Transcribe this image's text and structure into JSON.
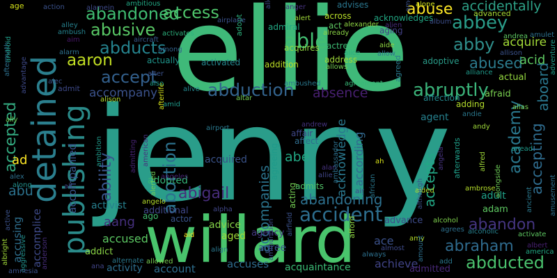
{
  "words": [
    {
      "text": "jenny",
      "color": "#2a9d8a"
    },
    {
      "text": "ellie",
      "color": "#3fb979"
    },
    {
      "text": "willard",
      "color": "#49c46c"
    },
    {
      "text": "detained",
      "color": "#2b7f8e"
    },
    {
      "text": "publishing",
      "color": "#2a8a89"
    },
    {
      "text": "abducted",
      "color": "#4ac16d"
    },
    {
      "text": "accident",
      "color": "#2d6e8e"
    },
    {
      "text": "abruptly",
      "color": "#3bb47a"
    },
    {
      "text": "abduction",
      "color": "#33638d"
    },
    {
      "text": "abandoned",
      "color": "#40bd72"
    },
    {
      "text": "access",
      "color": "#4fc56b"
    },
    {
      "text": "abusive",
      "color": "#58c765"
    },
    {
      "text": "abuse",
      "color": "#fde725"
    },
    {
      "text": "accidentally",
      "color": "#2ea288"
    },
    {
      "text": "abbey",
      "color": "#2a9d8a"
    },
    {
      "text": "abby",
      "color": "#2f8f8c"
    },
    {
      "text": "able",
      "color": "#42be71"
    },
    {
      "text": "abducts",
      "color": "#25838e"
    },
    {
      "text": "abused",
      "color": "#2c7c8e"
    },
    {
      "text": "aaron",
      "color": "#c2df23"
    },
    {
      "text": "accept",
      "color": "#33608d"
    },
    {
      "text": "abortion",
      "color": "#2c728e"
    },
    {
      "text": "ability",
      "color": "#39568c"
    },
    {
      "text": "academy",
      "color": "#2a788e"
    },
    {
      "text": "accepting",
      "color": "#2f6c8e"
    },
    {
      "text": "accepted",
      "color": "#33aa80"
    },
    {
      "text": "abigail",
      "color": "#472d7b"
    },
    {
      "text": "abandoning",
      "color": "#2d708e"
    },
    {
      "text": "abandon",
      "color": "#453581"
    },
    {
      "text": "abraham",
      "color": "#2f6b8e"
    },
    {
      "text": "accepts",
      "color": "#22a785"
    },
    {
      "text": "accompanies",
      "color": "#2b748e"
    },
    {
      "text": "aang",
      "color": "#46307e"
    },
    {
      "text": "absence",
      "color": "#482071"
    },
    {
      "text": "abe",
      "color": "#22a884"
    },
    {
      "text": "acknowledge",
      "color": "#2a788e"
    },
    {
      "text": "according",
      "color": "#31688e"
    },
    {
      "text": "aboard",
      "color": "#2a778e"
    },
    {
      "text": "acid",
      "color": "#5ec962"
    },
    {
      "text": "acquire",
      "color": "#a2da37"
    },
    {
      "text": "abu",
      "color": "#2c728e"
    },
    {
      "text": "accompany",
      "color": "#3b528b"
    },
    {
      "text": "accusing",
      "color": "#2e6f8e"
    },
    {
      "text": "accused",
      "color": "#5cc863"
    },
    {
      "text": "account",
      "color": "#2e6e8e"
    },
    {
      "text": "accuses",
      "color": "#2f6b8e"
    },
    {
      "text": "acquaintance",
      "color": "#3bbb75"
    },
    {
      "text": "achieve",
      "color": "#414487"
    },
    {
      "text": "accompanied",
      "color": "#39558c"
    },
    {
      "text": "accomplice",
      "color": "#3e4a89"
    },
    {
      "text": "acquired",
      "color": "#3a538b"
    },
    {
      "text": "adopted",
      "color": "#35b779"
    },
    {
      "text": "activist",
      "color": "#27808e"
    },
    {
      "text": "activity",
      "color": "#2e6e8e"
    },
    {
      "text": "additional",
      "color": "#3f4889"
    },
    {
      "text": "actor",
      "color": "#3a548c"
    },
    {
      "text": "advice",
      "color": "#86d549"
    },
    {
      "text": "aged",
      "color": "#a0da39"
    },
    {
      "text": "agency",
      "color": "#453882"
    },
    {
      "text": "agree",
      "color": "#39568c"
    },
    {
      "text": "ace",
      "color": "#3b528b"
    },
    {
      "text": "admitted",
      "color": "#482878"
    },
    {
      "text": "adult",
      "color": "#1fa188"
    },
    {
      "text": "adam",
      "color": "#5ec962"
    },
    {
      "text": "advance",
      "color": "#3e4c8a"
    },
    {
      "text": "addict",
      "color": "#8bd646"
    },
    {
      "text": "admits",
      "color": "#52c569"
    },
    {
      "text": "affect",
      "color": "#2f6c8e"
    },
    {
      "text": "affair",
      "color": "#3f4788"
    },
    {
      "text": "agent",
      "color": "#26818e"
    },
    {
      "text": "actual",
      "color": "#95d840"
    },
    {
      "text": "afraid",
      "color": "#7ad151"
    },
    {
      "text": "adding",
      "color": "#b5de2b"
    },
    {
      "text": "affection",
      "color": "#23888e"
    },
    {
      "text": "adoptive",
      "color": "#2a9d8a"
    },
    {
      "text": "address",
      "color": "#a0da39"
    },
    {
      "text": "acquires",
      "color": "#90d743"
    },
    {
      "text": "admiral",
      "color": "#22a884"
    },
    {
      "text": "adopt",
      "color": "#2db27d"
    },
    {
      "text": "actually",
      "color": "#1f958b"
    },
    {
      "text": "activated",
      "color": "#24868e"
    },
    {
      "text": "addition",
      "color": "#bddf26"
    },
    {
      "text": "actress",
      "color": "#3dbc74"
    },
    {
      "text": "acknowledges",
      "color": "#22a884"
    },
    {
      "text": "across",
      "color": "#b8de29"
    },
    {
      "text": "advises",
      "color": "#2a768e"
    },
    {
      "text": "advanced",
      "color": "#a8db34"
    },
    {
      "text": "act",
      "color": "#5ec962"
    },
    {
      "text": "aging",
      "color": "#424186"
    },
    {
      "text": "agreed",
      "color": "#29798e"
    },
    {
      "text": "ago",
      "color": "#42be71"
    },
    {
      "text": "admit",
      "color": "#3e4a89"
    },
    {
      "text": "alive",
      "color": "#24878e"
    },
    {
      "text": "alcohol",
      "color": "#7fd34e"
    },
    {
      "text": "alcoholic",
      "color": "#26818e"
    },
    {
      "text": "alias",
      "color": "#7ad151"
    },
    {
      "text": "alliance",
      "color": "#1f9a8a"
    },
    {
      "text": "allow",
      "color": "#2c738e"
    },
    {
      "text": "amy",
      "color": "#b5de2b"
    },
    {
      "text": "andy",
      "color": "#9fda3a"
    },
    {
      "text": "air",
      "color": "#3f4889"
    },
    {
      "text": "aided",
      "color": "#b5de2b"
    },
    {
      "text": "ah",
      "color": "#d8e219"
    },
    {
      "text": "adventure",
      "color": "#1f9e89"
    },
    {
      "text": "age",
      "color": "#d5e21a"
    },
    {
      "text": "activates",
      "color": "#2db27d"
    },
    {
      "text": "airplane",
      "color": "#3b528b"
    },
    {
      "text": "allowed",
      "color": "#7ad151"
    },
    {
      "text": "ambitious",
      "color": "#22a884"
    },
    {
      "text": "alamein",
      "color": "#3e4a89"
    },
    {
      "text": "action",
      "color": "#3b528b"
    },
    {
      "text": "ambush",
      "color": "#25838e"
    },
    {
      "text": "aim",
      "color": "#48186a"
    },
    {
      "text": "aircraft",
      "color": "#38588c"
    },
    {
      "text": "alley",
      "color": "#26818e"
    },
    {
      "text": "alarm",
      "color": "#2d708e"
    },
    {
      "text": "among",
      "color": "#33638d"
    },
    {
      "text": "alan",
      "color": "#46327e"
    },
    {
      "text": "allie",
      "color": "#404688"
    },
    {
      "text": "alien",
      "color": "#472c7a"
    },
    {
      "text": "album",
      "color": "#3d4e8a"
    },
    {
      "text": "alone",
      "color": "#d0e11c"
    },
    {
      "text": "alert",
      "color": "#a0da39"
    },
    {
      "text": "already",
      "color": "#8bd646"
    },
    {
      "text": "alexander",
      "color": "#90d743"
    },
    {
      "text": "alice",
      "color": "#29af7f"
    },
    {
      "text": "allows",
      "color": "#75d054"
    },
    {
      "text": "aide",
      "color": "#90d743"
    },
    {
      "text": "andrea",
      "color": "#5ec962"
    },
    {
      "text": "allison",
      "color": "#3b528b"
    },
    {
      "text": "amulet",
      "color": "#2d708e"
    },
    {
      "text": "amends",
      "color": "#3b528b"
    },
    {
      "text": "anger",
      "color": "#46337f"
    },
    {
      "text": "allowing",
      "color": "#3e4a89"
    },
    {
      "text": "agreement",
      "color": "#38b977"
    },
    {
      "text": "ambushed",
      "color": "#2a788e"
    },
    {
      "text": "altar",
      "color": "#75d054"
    },
    {
      "text": "airport",
      "color": "#2a788e"
    },
    {
      "text": "amid",
      "color": "#1f9a8a"
    },
    {
      "text": "alter",
      "color": "#3b528b"
    },
    {
      "text": "alison",
      "color": "#b5de2b"
    },
    {
      "text": "afterlife",
      "color": "#d5e21a"
    },
    {
      "text": "alec",
      "color": "#3b528b"
    },
    {
      "text": "advantage",
      "color": "#3e4a89"
    },
    {
      "text": "aftermath",
      "color": "#2d708e"
    },
    {
      "text": "android",
      "color": "#1f9e89"
    },
    {
      "text": "ally",
      "color": "#6ece58"
    },
    {
      "text": "along",
      "color": "#21918c"
    },
    {
      "text": "alex",
      "color": "#2d708e"
    },
    {
      "text": "ad",
      "color": "#fde725"
    },
    {
      "text": "ali",
      "color": "#404688"
    },
    {
      "text": "active",
      "color": "#3b528b"
    },
    {
      "text": "albright",
      "color": "#a0da39"
    },
    {
      "text": "aggressive",
      "color": "#21918c"
    },
    {
      "text": "anderson",
      "color": "#472d7b"
    },
    {
      "text": "amnesia",
      "color": "#3b528b"
    },
    {
      "text": "ana",
      "color": "#414487"
    },
    {
      "text": "alternate",
      "color": "#2a788e"
    },
    {
      "text": "alpha",
      "color": "#404688"
    },
    {
      "text": "aid",
      "color": "#fde725"
    },
    {
      "text": "align",
      "color": "#2a788e"
    },
    {
      "text": "always",
      "color": "#2d708e"
    },
    {
      "text": "almost",
      "color": "#3e4a89"
    },
    {
      "text": "add",
      "color": "#2a788e"
    },
    {
      "text": "albert",
      "color": "#482173"
    },
    {
      "text": "america",
      "color": "#22a884"
    },
    {
      "text": "activate",
      "color": "#5ec962"
    },
    {
      "text": "agrees",
      "color": "#2d708e"
    },
    {
      "text": "ambrose",
      "color": "#b5de2b"
    },
    {
      "text": "alfred",
      "color": "#a0da39"
    },
    {
      "text": "alongside",
      "color": "#6ece58"
    },
    {
      "text": "ancient",
      "color": "#2a788e"
    },
    {
      "text": "amusement",
      "color": "#2d708e"
    },
    {
      "text": "anead",
      "color": "#1f9a8a"
    },
    {
      "text": "angela",
      "color": "#46337f"
    },
    {
      "text": "angelo",
      "color": "#b5de2b"
    },
    {
      "text": "angeles",
      "color": "#482576"
    },
    {
      "text": "ammunition",
      "color": "#3e4a89"
    },
    {
      "text": "airfield",
      "color": "#3b528b"
    },
    {
      "text": "ambassador",
      "color": "#2d708e"
    },
    {
      "text": "alerted",
      "color": "#6ece58"
    },
    {
      "text": "ambition",
      "color": "#1f9a8a"
    },
    {
      "text": "american",
      "color": "#46337f"
    },
    {
      "text": "african",
      "color": "#2a788e"
    },
    {
      "text": "acting",
      "color": "#75d054"
    },
    {
      "text": "afterwards",
      "color": "#1f9e89"
    },
    {
      "text": "although",
      "color": "#3b528b"
    },
    {
      "text": "afford",
      "color": "#90d743"
    },
    {
      "text": "admitting",
      "color": "#482475"
    },
    {
      "text": "amount",
      "color": "#2d708e"
    },
    {
      "text": "agreeing",
      "color": "#1f9a8a"
    },
    {
      "text": "andie",
      "color": "#2a788e"
    },
    {
      "text": "andrew",
      "color": "#46337f"
    },
    {
      "text": "also",
      "color": "#1f9e89"
    }
  ]
}
